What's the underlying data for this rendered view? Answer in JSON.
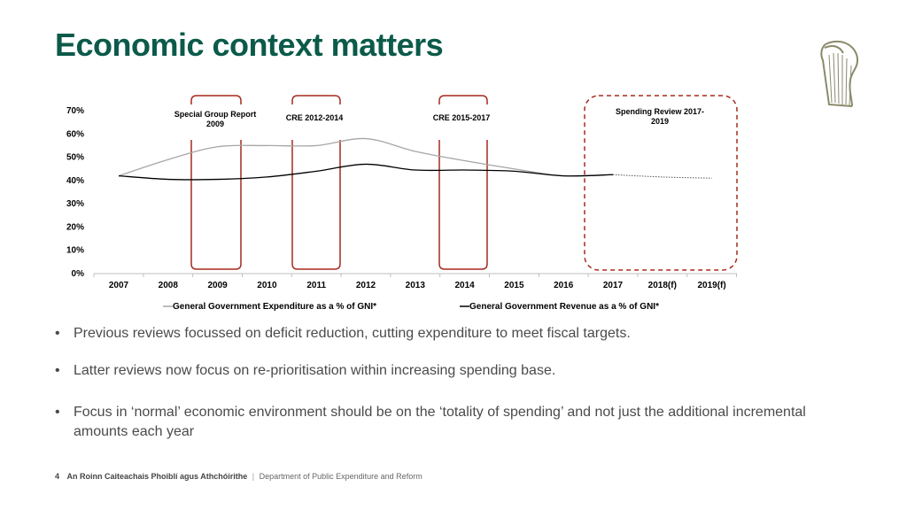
{
  "title": "Economic context matters",
  "chart_data": {
    "type": "line",
    "categories": [
      "2007",
      "2008",
      "2009",
      "2010",
      "2011",
      "2012",
      "2013",
      "2014",
      "2015",
      "2016",
      "2017",
      "2018(f)",
      "2019(f)"
    ],
    "y_ticks": [
      "0%",
      "10%",
      "20%",
      "30%",
      "40%",
      "50%",
      "60%",
      "70%"
    ],
    "ylim": [
      0,
      70
    ],
    "series": [
      {
        "name": "General Government Expenditure as a % of GNI*",
        "color": "#a6a6a6",
        "values": [
          42,
          49,
          54.5,
          55,
          55,
          58,
          52.5,
          48.5,
          45,
          42,
          42.5,
          41.5,
          41
        ]
      },
      {
        "name": "General Government Revenue as a % of GNI*",
        "color": "#000000",
        "values": [
          42,
          40.5,
          40.5,
          41.5,
          44,
          47,
          44.5,
          44.5,
          44,
          42,
          42.5,
          null,
          null
        ]
      }
    ],
    "annotations": [
      {
        "label": "Special Group Report 2009"
      },
      {
        "label": "CRE 2012-2014"
      },
      {
        "label": "CRE 2015-2017"
      },
      {
        "label": "Spending Review 2017-2019"
      }
    ],
    "legend_position": "bottom",
    "grid": false
  },
  "bullets": [
    "Previous reviews focussed on deficit reduction, cutting expenditure to meet fiscal targets.",
    "Latter reviews now focus on re-prioritisation within increasing spending base.",
    "Focus in ‘normal’ economic environment should be on the ‘totality of spending’ and not just the additional incremental amounts each year"
  ],
  "footer": {
    "page_number": "4",
    "irish_name": "An Roinn Caiteachais Phoiblí agus Athchóirithe",
    "separator": "|",
    "english_name": "Department of Public Expenditure and Reform"
  },
  "colors": {
    "title": "#0b5a4a",
    "annotation_box": "#a52a1e",
    "harp": "#8a8a6a"
  }
}
